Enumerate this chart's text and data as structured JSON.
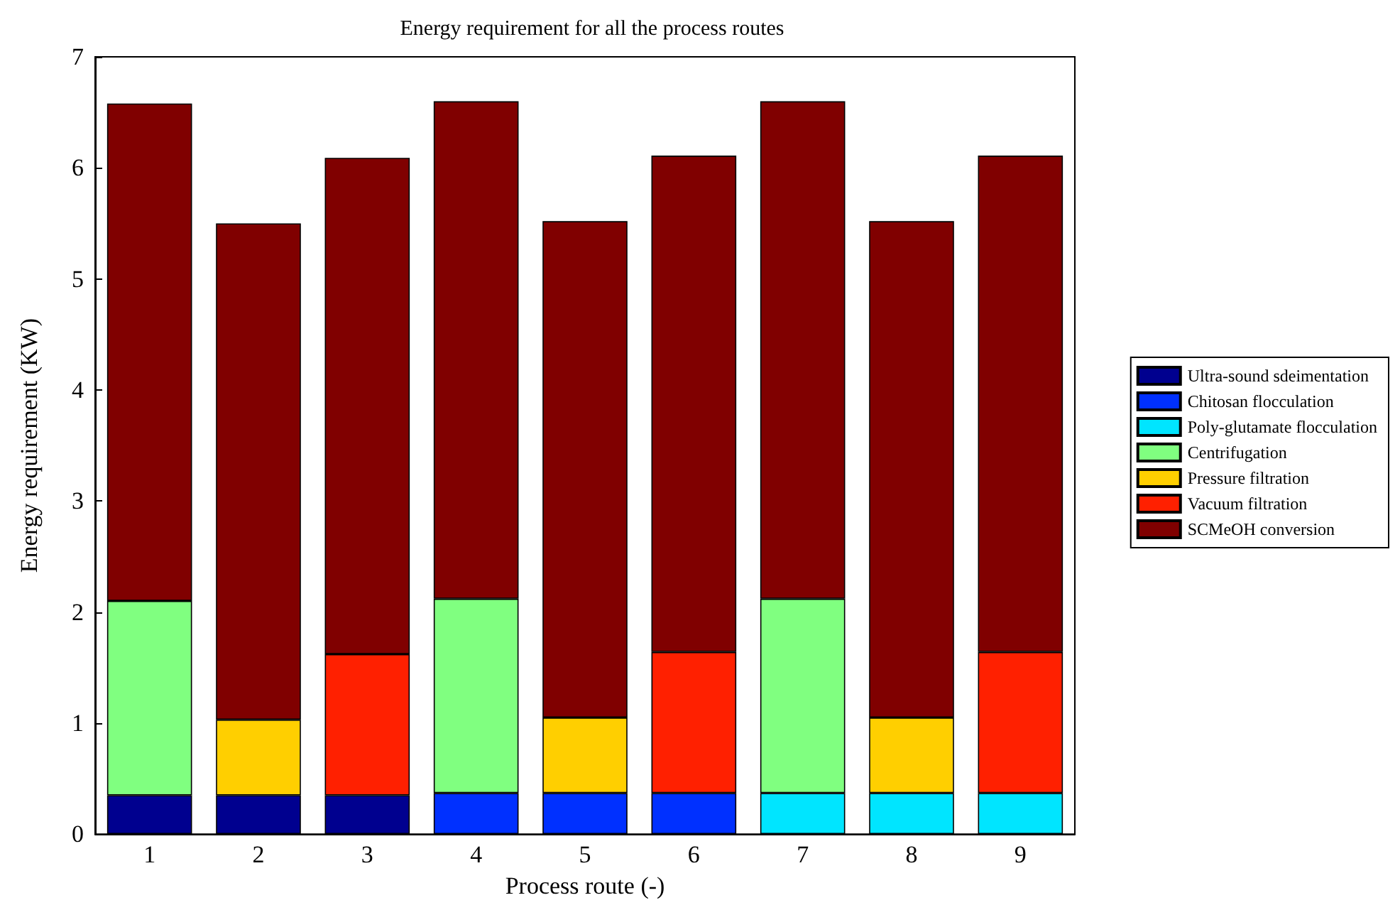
{
  "chart_data": {
    "type": "bar",
    "title": "Energy requirement for all the process routes",
    "xlabel": "Process route (-)",
    "ylabel": "Energy requirement (KW)",
    "categories": [
      "1",
      "2",
      "3",
      "4",
      "5",
      "6",
      "7",
      "8",
      "9"
    ],
    "stacked": true,
    "ylim": [
      0,
      7
    ],
    "yticks": [
      0,
      1,
      2,
      3,
      4,
      5,
      6,
      7
    ],
    "grid": false,
    "legend": "right",
    "series": [
      {
        "name": "Ultra-sound sdeimentation",
        "color": "#00008f",
        "values": [
          0.35,
          0.35,
          0.35,
          null,
          null,
          null,
          null,
          null,
          null
        ]
      },
      {
        "name": "Chitosan flocculation",
        "color": "#0030ff",
        "values": [
          null,
          null,
          null,
          0.37,
          0.37,
          0.37,
          null,
          null,
          null
        ]
      },
      {
        "name": "Poly-glutamate flocculation",
        "color": "#00e5ff",
        "values": [
          null,
          null,
          null,
          null,
          null,
          null,
          0.37,
          0.37,
          0.37
        ]
      },
      {
        "name": "Centrifugation",
        "color": "#80ff80",
        "values": [
          1.75,
          null,
          null,
          1.75,
          null,
          null,
          1.75,
          null,
          null
        ]
      },
      {
        "name": "Pressure filtration",
        "color": "#ffcf00",
        "values": [
          null,
          0.68,
          null,
          null,
          0.68,
          null,
          null,
          0.68,
          null
        ]
      },
      {
        "name": "Vacuum filtration",
        "color": "#ff2000",
        "values": [
          null,
          null,
          1.27,
          null,
          null,
          1.27,
          null,
          null,
          1.27
        ]
      },
      {
        "name": "SCMeOH conversion",
        "color": "#800000",
        "values": [
          4.48,
          4.47,
          4.47,
          4.48,
          4.47,
          4.47,
          4.48,
          4.47,
          4.47
        ]
      }
    ]
  }
}
